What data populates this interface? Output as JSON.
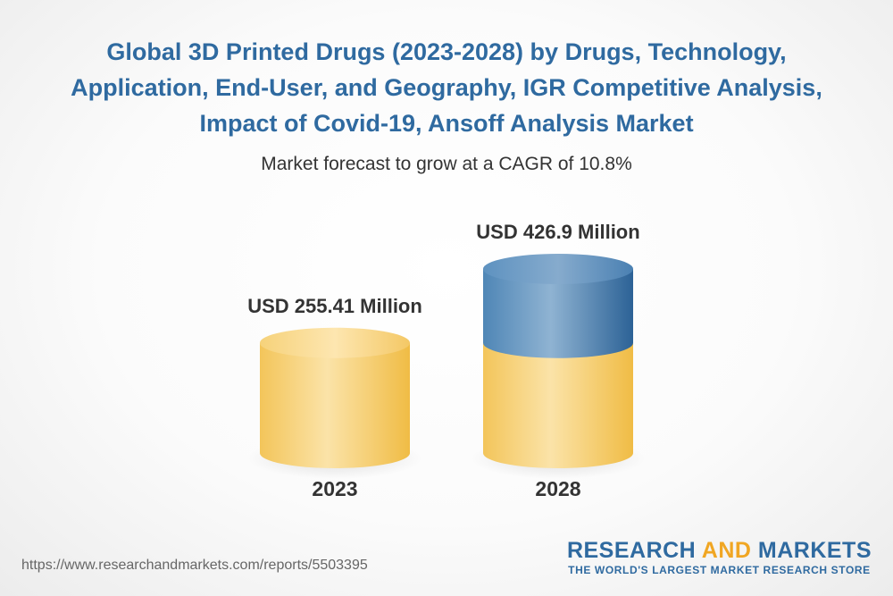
{
  "title": "Global 3D Printed Drugs (2023-2028) by Drugs, Technology, Application, End-User, and Geography, IGR Competitive Analysis, Impact of Covid-19, Ansoff Analysis Market",
  "subtitle": "Market forecast to grow at a CAGR of 10.8%",
  "colors": {
    "title": "#2f6aa0",
    "base_cylinder": "#f2c75c",
    "growth_cylinder": "#3f77a8",
    "brand_blue": "#2f6aa0",
    "brand_accent": "#f0a623"
  },
  "chart_data": {
    "type": "bar",
    "style": "3d-cylinder",
    "categories": [
      "2023",
      "2028"
    ],
    "values": [
      255.41,
      426.9
    ],
    "value_labels": [
      "USD 255.41 Million",
      "USD 426.9 Million"
    ],
    "unit": "USD Million",
    "ylim": [
      0,
      426.9
    ]
  },
  "footer": {
    "url": "https://www.researchandmarkets.com/reports/5503395",
    "brand_part1": "RESEARCH ",
    "brand_part2": "AND",
    "brand_part3": " MARKETS",
    "tagline": "THE WORLD'S LARGEST MARKET RESEARCH STORE"
  }
}
